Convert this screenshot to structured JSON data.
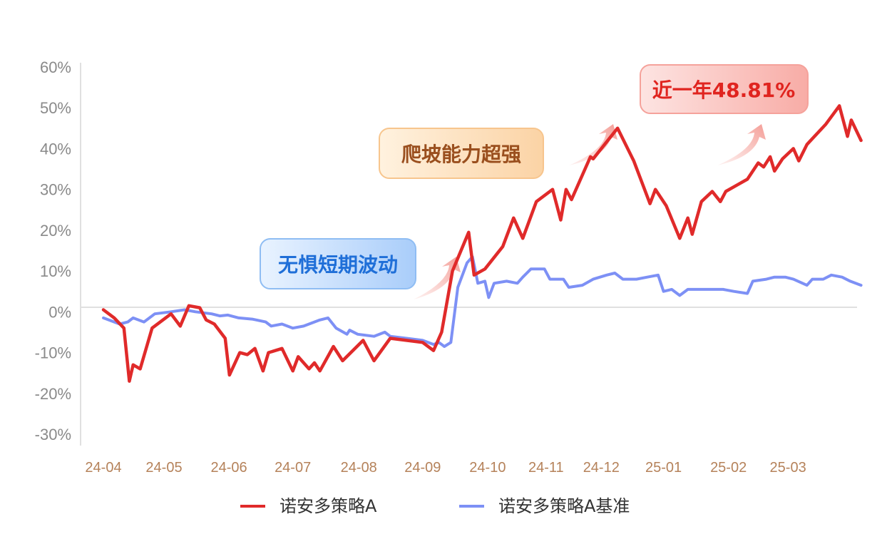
{
  "chart_data": {
    "type": "line",
    "title": "",
    "xlabel": "",
    "ylabel": "",
    "ylim": [
      -30,
      60
    ],
    "y_ticks": [
      "60%",
      "50%",
      "40%",
      "30%",
      "20%",
      "10%",
      "0%",
      "-10%",
      "-20%",
      "-30%"
    ],
    "x_ticks": [
      "24-04",
      "24-05",
      "24-06",
      "24-07",
      "24-08",
      "24-09",
      "24-10",
      "24-11",
      "24-12",
      "25-01",
      "25-02",
      "25-03"
    ],
    "legend_position": "bottom",
    "grid": false,
    "series": [
      {
        "name": "诺安多策略A",
        "color": "#e02a2a",
        "points": [
          [
            0.0,
            0.5
          ],
          [
            0.2,
            -1.5
          ],
          [
            0.38,
            -4.0
          ],
          [
            0.48,
            -17.0
          ],
          [
            0.55,
            -13.0
          ],
          [
            0.68,
            -14.0
          ],
          [
            0.9,
            -4.0
          ],
          [
            1.25,
            -0.5
          ],
          [
            1.42,
            -3.5
          ],
          [
            1.58,
            1.5
          ],
          [
            1.78,
            1.0
          ],
          [
            1.9,
            -2.0
          ],
          [
            2.05,
            -3.0
          ],
          [
            2.25,
            -6.5
          ],
          [
            2.33,
            -15.5
          ],
          [
            2.52,
            -10.0
          ],
          [
            2.66,
            -10.5
          ],
          [
            2.8,
            -9.0
          ],
          [
            2.95,
            -14.5
          ],
          [
            3.05,
            -10.0
          ],
          [
            3.3,
            -9.0
          ],
          [
            3.5,
            -14.5
          ],
          [
            3.6,
            -11.0
          ],
          [
            3.8,
            -14.0
          ],
          [
            3.9,
            -12.5
          ],
          [
            4.0,
            -14.5
          ],
          [
            4.25,
            -8.5
          ],
          [
            4.42,
            -12.0
          ],
          [
            4.8,
            -7.0
          ],
          [
            5.0,
            -12.0
          ],
          [
            5.3,
            -6.5
          ],
          [
            5.6,
            -7.0
          ],
          [
            5.9,
            -7.5
          ],
          [
            6.1,
            -9.5
          ],
          [
            6.25,
            -5.0
          ],
          [
            6.45,
            10.0
          ],
          [
            6.75,
            19.5
          ],
          [
            6.85,
            9.0
          ],
          [
            7.05,
            10.5
          ],
          [
            7.38,
            16.0
          ],
          [
            7.58,
            23.0
          ],
          [
            7.75,
            18.0
          ],
          [
            8.0,
            27.0
          ],
          [
            8.3,
            30.0
          ],
          [
            8.45,
            22.5
          ],
          [
            8.55,
            30.0
          ],
          [
            8.65,
            27.5
          ],
          [
            9.0,
            38.0
          ],
          [
            9.05,
            37.5
          ],
          [
            9.5,
            45.0
          ],
          [
            9.8,
            37.0
          ],
          [
            10.1,
            26.5
          ],
          [
            10.2,
            30.0
          ],
          [
            10.4,
            26.0
          ],
          [
            10.65,
            18.0
          ],
          [
            10.8,
            23.0
          ],
          [
            10.88,
            19.0
          ],
          [
            11.05,
            27.0
          ],
          [
            11.25,
            29.5
          ],
          [
            11.4,
            27.0
          ],
          [
            11.5,
            29.5
          ],
          [
            11.7,
            31.0
          ],
          [
            11.9,
            32.5
          ],
          [
            12.1,
            36.5
          ],
          [
            12.2,
            35.5
          ],
          [
            12.32,
            38.0
          ],
          [
            12.4,
            34.5
          ],
          [
            12.55,
            37.5
          ],
          [
            12.75,
            40.0
          ],
          [
            12.85,
            37.0
          ],
          [
            13.0,
            41.0
          ],
          [
            13.35,
            46.0
          ],
          [
            13.6,
            50.5
          ],
          [
            13.75,
            43.0
          ],
          [
            13.82,
            47.0
          ],
          [
            14.0,
            42.0
          ]
        ]
      },
      {
        "name": "诺安多策略A基准",
        "color": "#7d90f5",
        "points": [
          [
            0.0,
            -1.5
          ],
          [
            0.3,
            -3.0
          ],
          [
            0.45,
            -2.5
          ],
          [
            0.55,
            -1.5
          ],
          [
            0.75,
            -2.5
          ],
          [
            0.95,
            -0.5
          ],
          [
            1.25,
            0.0
          ],
          [
            1.5,
            0.5
          ],
          [
            1.7,
            0.0
          ],
          [
            2.0,
            -0.5
          ],
          [
            2.15,
            -1.0
          ],
          [
            2.3,
            -0.8
          ],
          [
            2.5,
            -1.5
          ],
          [
            2.75,
            -1.8
          ],
          [
            3.0,
            -2.5
          ],
          [
            3.1,
            -3.5
          ],
          [
            3.3,
            -3.0
          ],
          [
            3.5,
            -4.0
          ],
          [
            3.7,
            -3.5
          ],
          [
            4.0,
            -2.0
          ],
          [
            4.15,
            -1.5
          ],
          [
            4.3,
            -4.0
          ],
          [
            4.5,
            -5.5
          ],
          [
            4.55,
            -4.5
          ],
          [
            4.7,
            -5.5
          ],
          [
            5.0,
            -6.0
          ],
          [
            5.2,
            -5.0
          ],
          [
            5.3,
            -6.0
          ],
          [
            5.6,
            -6.5
          ],
          [
            5.9,
            -7.0
          ],
          [
            6.1,
            -8.0
          ],
          [
            6.2,
            -7.5
          ],
          [
            6.3,
            -8.5
          ],
          [
            6.42,
            -7.5
          ],
          [
            6.55,
            6.0
          ],
          [
            6.72,
            12.0
          ],
          [
            6.82,
            13.5
          ],
          [
            6.92,
            7.0
          ],
          [
            7.05,
            7.5
          ],
          [
            7.12,
            3.5
          ],
          [
            7.22,
            7.0
          ],
          [
            7.45,
            7.5
          ],
          [
            7.65,
            7.0
          ],
          [
            7.75,
            8.5
          ],
          [
            7.9,
            10.5
          ],
          [
            8.15,
            10.5
          ],
          [
            8.25,
            8.0
          ],
          [
            8.5,
            8.0
          ],
          [
            8.6,
            6.0
          ],
          [
            8.85,
            6.5
          ],
          [
            9.05,
            8.0
          ],
          [
            9.3,
            9.0
          ],
          [
            9.45,
            9.5
          ],
          [
            9.6,
            8.0
          ],
          [
            9.85,
            8.0
          ],
          [
            10.05,
            8.5
          ],
          [
            10.25,
            9.0
          ],
          [
            10.35,
            5.0
          ],
          [
            10.5,
            5.5
          ],
          [
            10.65,
            4.0
          ],
          [
            10.8,
            5.5
          ],
          [
            11.05,
            5.5
          ],
          [
            11.3,
            5.5
          ],
          [
            11.45,
            5.5
          ],
          [
            11.65,
            5.0
          ],
          [
            11.9,
            4.5
          ],
          [
            12.0,
            7.5
          ],
          [
            12.25,
            8.0
          ],
          [
            12.4,
            8.5
          ],
          [
            12.6,
            8.5
          ],
          [
            12.75,
            8.0
          ],
          [
            13.0,
            6.5
          ],
          [
            13.1,
            8.0
          ],
          [
            13.3,
            8.0
          ],
          [
            13.45,
            9.0
          ],
          [
            13.65,
            8.5
          ],
          [
            13.8,
            7.5
          ],
          [
            14.0,
            6.5
          ]
        ]
      }
    ],
    "annotations": [
      {
        "text": "无惧短期波动",
        "color": "#1f6fd8",
        "theme": "blue"
      },
      {
        "text": "爬坡能力超强",
        "color": "#9a4f1e",
        "theme": "orange"
      },
      {
        "text": "近一年48.81%",
        "color": "#e0241f",
        "theme": "red"
      }
    ]
  }
}
